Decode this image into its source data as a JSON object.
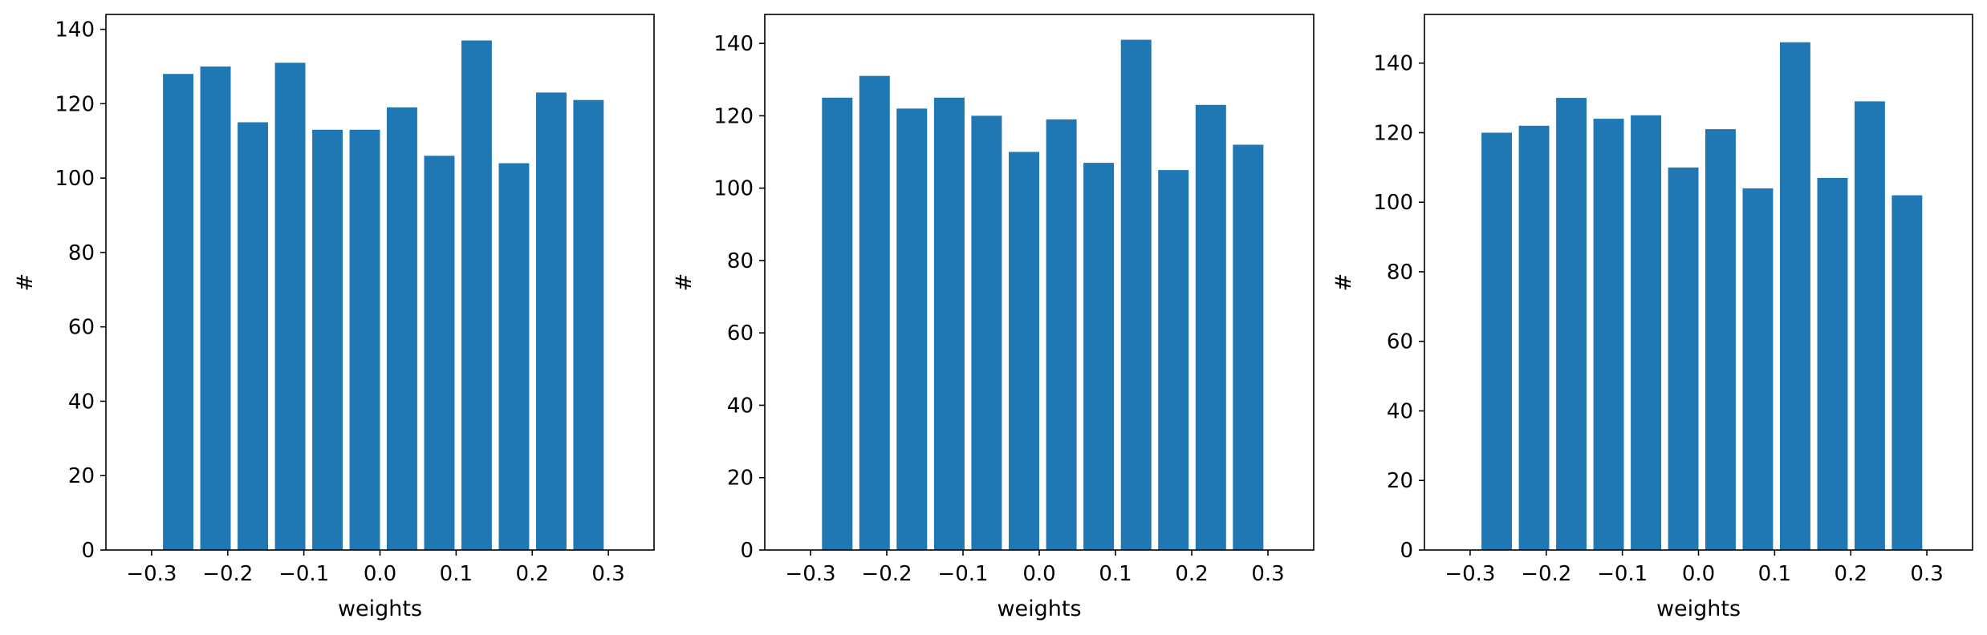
{
  "colors": {
    "bar": "#1f77b4",
    "axes": "#000000",
    "background": "#ffffff"
  },
  "chart_data": [
    {
      "type": "bar",
      "xlabel": "weights",
      "ylabel": "#",
      "xlim": [
        -0.36,
        0.36
      ],
      "ylim": [
        0,
        144
      ],
      "bar_width": 0.04,
      "x_ticks": [
        -0.3,
        -0.2,
        -0.1,
        0.0,
        0.1,
        0.2,
        0.3
      ],
      "x_tick_labels": [
        "−0.3",
        "−0.2",
        "−0.1",
        "0.0",
        "0.1",
        "0.2",
        "0.3"
      ],
      "y_ticks": [
        0,
        20,
        40,
        60,
        80,
        100,
        120,
        140
      ],
      "y_tick_labels": [
        "0",
        "20",
        "40",
        "60",
        "80",
        "100",
        "120",
        "140"
      ],
      "x": [
        -0.265,
        -0.216,
        -0.167,
        -0.118,
        -0.069,
        -0.02,
        0.029,
        0.078,
        0.127,
        0.176,
        0.225,
        0.274
      ],
      "values": [
        128,
        130,
        115,
        131,
        113,
        113,
        119,
        106,
        137,
        104,
        123,
        121
      ],
      "grid": false
    },
    {
      "type": "bar",
      "xlabel": "weights",
      "ylabel": "#",
      "xlim": [
        -0.36,
        0.36
      ],
      "ylim": [
        0,
        148
      ],
      "bar_width": 0.04,
      "x_ticks": [
        -0.3,
        -0.2,
        -0.1,
        0.0,
        0.1,
        0.2,
        0.3
      ],
      "x_tick_labels": [
        "−0.3",
        "−0.2",
        "−0.1",
        "0.0",
        "0.1",
        "0.2",
        "0.3"
      ],
      "y_ticks": [
        0,
        20,
        40,
        60,
        80,
        100,
        120,
        140
      ],
      "y_tick_labels": [
        "0",
        "20",
        "40",
        "60",
        "80",
        "100",
        "120",
        "140"
      ],
      "x": [
        -0.265,
        -0.216,
        -0.167,
        -0.118,
        -0.069,
        -0.02,
        0.029,
        0.078,
        0.127,
        0.176,
        0.225,
        0.274
      ],
      "values": [
        125,
        131,
        122,
        125,
        120,
        110,
        119,
        107,
        141,
        105,
        123,
        112
      ],
      "grid": false
    },
    {
      "type": "bar",
      "xlabel": "weights",
      "ylabel": "#",
      "xlim": [
        -0.36,
        0.36
      ],
      "ylim": [
        0,
        154
      ],
      "bar_width": 0.04,
      "x_ticks": [
        -0.3,
        -0.2,
        -0.1,
        0.0,
        0.1,
        0.2,
        0.3
      ],
      "x_tick_labels": [
        "−0.3",
        "−0.2",
        "−0.1",
        "0.0",
        "0.1",
        "0.2",
        "0.3"
      ],
      "y_ticks": [
        0,
        20,
        40,
        60,
        80,
        100,
        120,
        140
      ],
      "y_tick_labels": [
        "0",
        "20",
        "40",
        "60",
        "80",
        "100",
        "120",
        "140"
      ],
      "x": [
        -0.265,
        -0.216,
        -0.167,
        -0.118,
        -0.069,
        -0.02,
        0.029,
        0.078,
        0.127,
        0.176,
        0.225,
        0.274
      ],
      "values": [
        120,
        122,
        130,
        124,
        125,
        110,
        121,
        104,
        146,
        107,
        129,
        102
      ],
      "grid": false
    }
  ]
}
